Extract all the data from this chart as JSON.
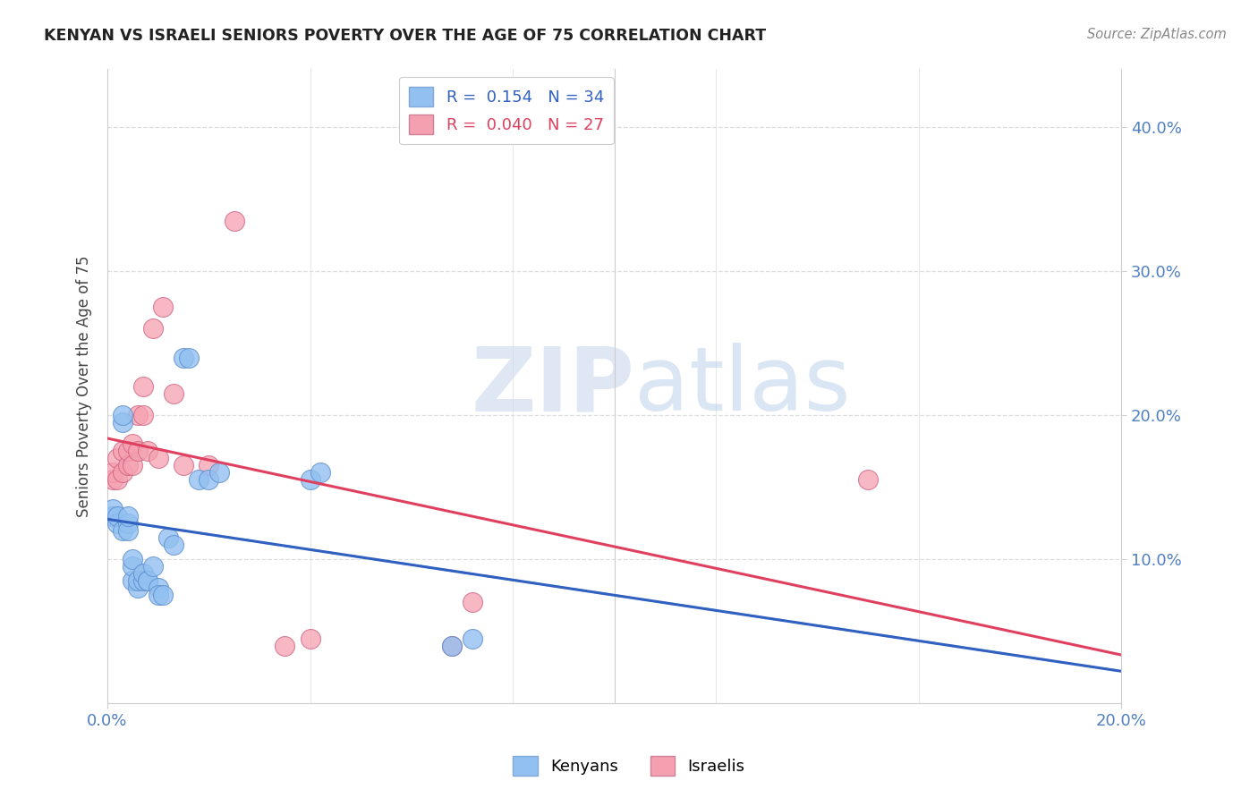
{
  "title": "KENYAN VS ISRAELI SENIORS POVERTY OVER THE AGE OF 75 CORRELATION CHART",
  "source": "Source: ZipAtlas.com",
  "ylabel": "Seniors Poverty Over the Age of 75",
  "xlim": [
    0.0,
    0.2
  ],
  "ylim": [
    0.0,
    0.44
  ],
  "kenyan_color": "#92C0F0",
  "israeli_color": "#F5A0B0",
  "kenyan_R": 0.154,
  "kenyan_N": 34,
  "israeli_R": 0.04,
  "israeli_N": 27,
  "kenyan_trend_color": "#3060C0",
  "israeli_trend_color": "#E04060",
  "kenyan_scatter_x": [
    0.001,
    0.001,
    0.002,
    0.002,
    0.003,
    0.003,
    0.003,
    0.004,
    0.004,
    0.004,
    0.005,
    0.005,
    0.005,
    0.006,
    0.006,
    0.007,
    0.007,
    0.008,
    0.008,
    0.009,
    0.01,
    0.01,
    0.011,
    0.012,
    0.013,
    0.015,
    0.016,
    0.018,
    0.02,
    0.022,
    0.04,
    0.042,
    0.068,
    0.072
  ],
  "kenyan_scatter_y": [
    0.13,
    0.135,
    0.125,
    0.13,
    0.195,
    0.2,
    0.12,
    0.125,
    0.12,
    0.13,
    0.085,
    0.095,
    0.1,
    0.08,
    0.085,
    0.085,
    0.09,
    0.085,
    0.085,
    0.095,
    0.08,
    0.075,
    0.075,
    0.115,
    0.11,
    0.24,
    0.24,
    0.155,
    0.155,
    0.16,
    0.155,
    0.16,
    0.04,
    0.045
  ],
  "israeli_scatter_x": [
    0.001,
    0.001,
    0.002,
    0.002,
    0.003,
    0.003,
    0.004,
    0.004,
    0.005,
    0.005,
    0.006,
    0.006,
    0.007,
    0.007,
    0.008,
    0.009,
    0.01,
    0.011,
    0.013,
    0.015,
    0.02,
    0.025,
    0.035,
    0.04,
    0.068,
    0.072,
    0.15
  ],
  "israeli_scatter_y": [
    0.155,
    0.16,
    0.155,
    0.17,
    0.16,
    0.175,
    0.165,
    0.175,
    0.165,
    0.18,
    0.175,
    0.2,
    0.2,
    0.22,
    0.175,
    0.26,
    0.17,
    0.275,
    0.215,
    0.165,
    0.165,
    0.335,
    0.04,
    0.045,
    0.04,
    0.07,
    0.155
  ],
  "watermark_zip": "ZIP",
  "watermark_atlas": "atlas",
  "background_color": "#FFFFFF",
  "grid_color": "#DDDDDD",
  "tick_color": "#5080C0"
}
